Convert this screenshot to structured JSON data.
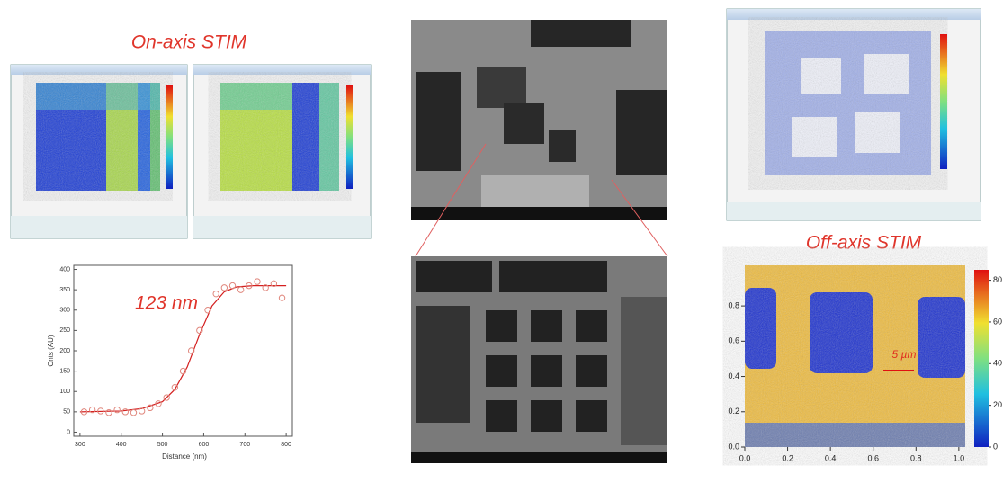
{
  "on_axis": {
    "title": "On-axis STIM"
  },
  "off_axis": {
    "title": "Off-axis STIM",
    "annotation": "5 µm",
    "xlim": [
      0,
      1.03
    ],
    "xticks": [
      {
        "value": 0,
        "label": "0.0"
      },
      0.2,
      0.4,
      0.6,
      0.8,
      {
        "value": 1,
        "label": "1.0"
      }
    ],
    "ylim": [
      0,
      1.03
    ],
    "yticks": [
      {
        "value": 0,
        "label": "0.0"
      },
      0.2,
      0.4,
      0.6,
      0.8
    ],
    "colorbar_lim": [
      0,
      85
    ],
    "colorbar_ticks": [
      0,
      20,
      40,
      60,
      80
    ]
  },
  "profile": {
    "annotation": "123 nm",
    "x_label": "Distance (nm)",
    "y_label": "Cnts (AU)",
    "xlim": [
      285,
      815
    ],
    "xticks": [
      300,
      400,
      500,
      600,
      700,
      800
    ],
    "ylim": [
      -10,
      410
    ],
    "yticks": [
      0,
      50,
      100,
      150,
      200,
      250,
      300,
      350,
      400
    ],
    "points": {
      "color": "#e0877d",
      "x": [
        310,
        330,
        350,
        370,
        390,
        410,
        430,
        450,
        470,
        490,
        510,
        530,
        550,
        570,
        590,
        610,
        630,
        650,
        670,
        690,
        710,
        730,
        750,
        770,
        790
      ],
      "values": [
        50,
        55,
        52,
        48,
        55,
        50,
        48,
        52,
        60,
        70,
        85,
        110,
        150,
        200,
        250,
        300,
        340,
        355,
        360,
        350,
        360,
        370,
        355,
        365,
        330
      ]
    },
    "fit": {
      "color": "#d42020",
      "x": [
        300,
        400,
        450,
        500,
        530,
        560,
        590,
        620,
        650,
        680,
        720,
        800
      ],
      "values": [
        50,
        52,
        58,
        75,
        105,
        160,
        240,
        310,
        345,
        357,
        360,
        360
      ]
    }
  }
}
